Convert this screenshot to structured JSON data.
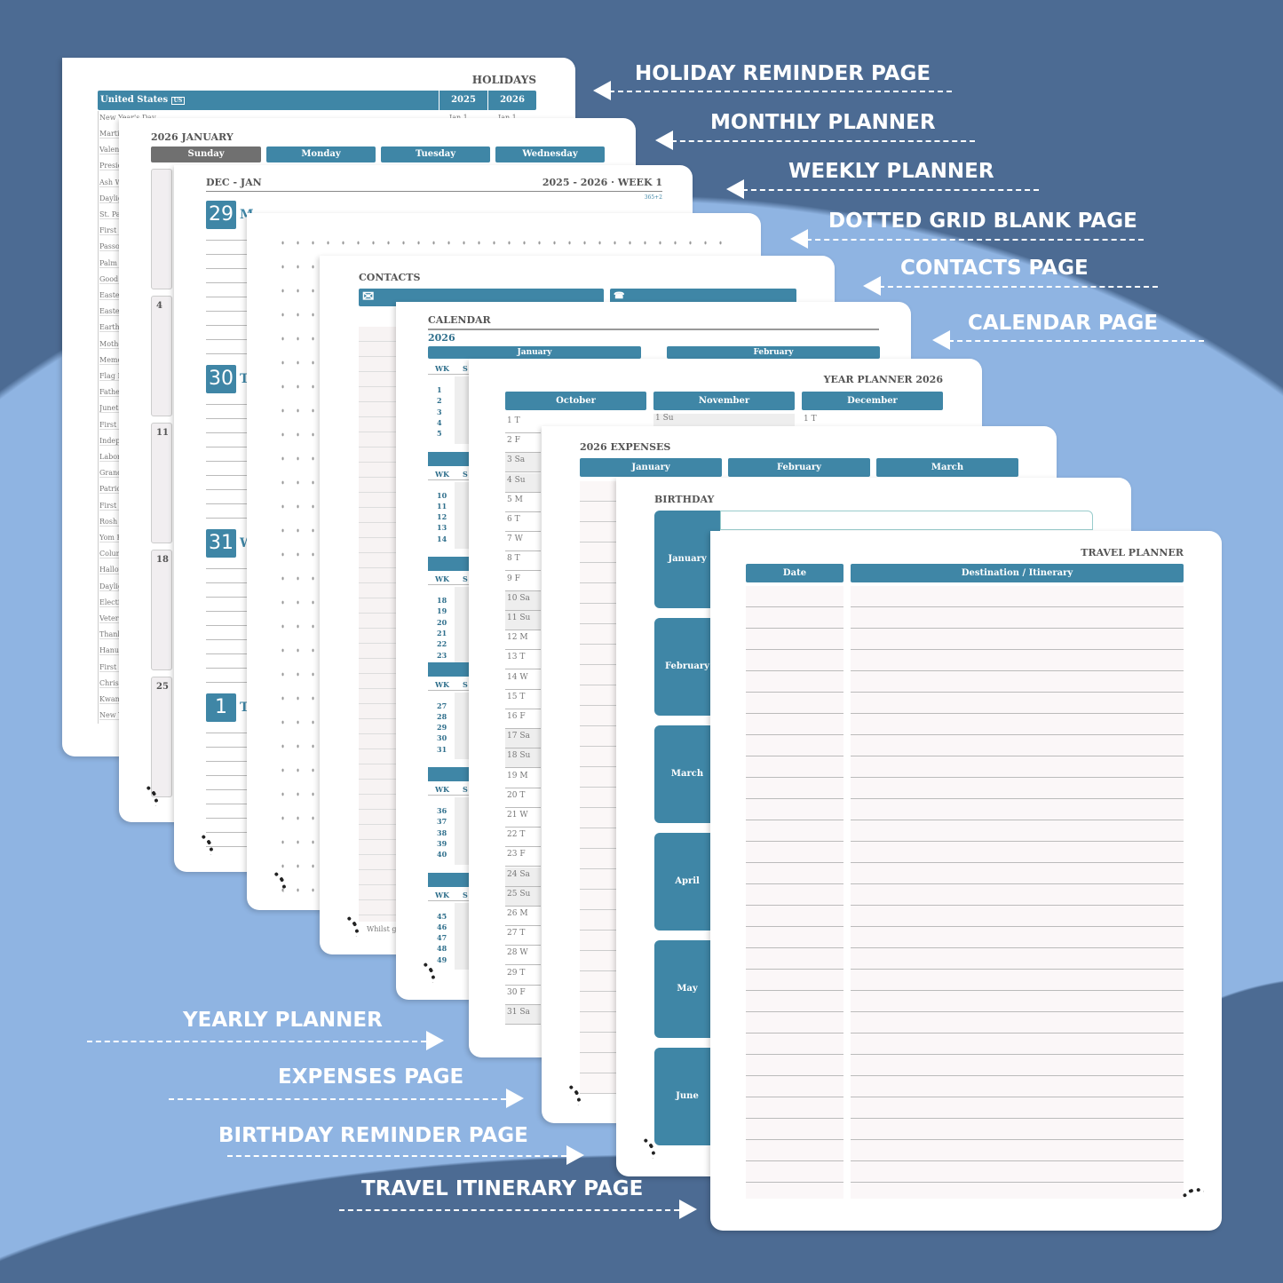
{
  "colors": {
    "background": "#4c6b93",
    "arc": "#8fb4e2",
    "accent": "#3f86a6"
  },
  "labels_right": [
    "HOLIDAY REMINDER PAGE",
    "MONTHLY PLANNER",
    "WEEKLY PLANNER",
    "DOTTED GRID BLANK PAGE",
    "CONTACTS PAGE",
    "CALENDAR PAGE"
  ],
  "labels_left": [
    "YEARLY PLANNER",
    "EXPENSES PAGE",
    "BIRTHDAY REMINDER PAGE",
    "TRAVEL ITINERARY PAGE"
  ],
  "holiday": {
    "title": "HOLIDAYS",
    "country": "United States",
    "country_code": "US",
    "years": [
      "2025",
      "2026"
    ],
    "first_row": {
      "name": "New Year's Day",
      "d2025": "Jan 1",
      "d2026": "Jan 1"
    },
    "names": [
      "Martin",
      "Valent",
      "Preside",
      "Ash W",
      "Dayligl",
      "St. Pat",
      "First D",
      "Passov",
      "Palm S",
      "Good I",
      "Easter",
      "Easter",
      "Earth I",
      "Mothe",
      "Memo",
      "Flag D",
      "Father",
      "Junete",
      "First D",
      "Indepe",
      "Labor",
      "Grand",
      "Patriot",
      "First D",
      "Rosh F",
      "Yom K",
      "Colum",
      "Hallow",
      "Dayligl",
      "Electio",
      "Vetera",
      "Thank",
      "Hanuk",
      "First D",
      "Christ",
      "Kwanz",
      "New Y"
    ]
  },
  "monthly": {
    "title": "2026 JANUARY",
    "days": [
      "Sunday",
      "Monday",
      "Tuesday",
      "Wednesday"
    ],
    "week_dates": [
      "4",
      "11",
      "18",
      "25"
    ]
  },
  "weekly": {
    "left": "DEC - JAN",
    "right": "2025 - 2026 · WEEK 1",
    "sub": "365+2",
    "days": [
      {
        "n": "29",
        "d": "M"
      },
      {
        "n": "30",
        "d": "T"
      },
      {
        "n": "31",
        "d": "W"
      },
      {
        "n": "1",
        "d": "T"
      }
    ]
  },
  "contacts": {
    "title": "CONTACTS",
    "footer": "Whilst g"
  },
  "calendar": {
    "title": "CALENDAR",
    "year": "2026",
    "months": [
      "January",
      "February"
    ],
    "wk_label": "WK",
    "s_label": "S",
    "weeks": [
      [
        "1",
        "2",
        "3",
        "4",
        "5"
      ],
      [
        "10",
        "11",
        "12",
        "13",
        "14"
      ],
      [
        "18",
        "19",
        "20",
        "21",
        "22",
        "23"
      ],
      [
        "27",
        "28",
        "29",
        "30",
        "31"
      ],
      [
        "36",
        "37",
        "38",
        "39",
        "40"
      ],
      [
        "45",
        "46",
        "47",
        "48",
        "49"
      ]
    ]
  },
  "year_planner": {
    "title": "YEAR PLANNER 2026",
    "months": [
      "October",
      "November",
      "December"
    ],
    "nov_first": "1  Su",
    "dec_first": "1  T",
    "october": [
      "1  T",
      "2  F",
      "3  Sa",
      "4  Su",
      "5  M",
      "6  T",
      "7  W",
      "8  T",
      "9  F",
      "10 Sa",
      "11 Su",
      "12 M",
      "13 T",
      "14 W",
      "15 T",
      "16 F",
      "17 Sa",
      "18 Su",
      "19 M",
      "20 T",
      "21 W",
      "22 T",
      "23 F",
      "24 Sa",
      "25 Su",
      "26 M",
      "27 T",
      "28 W",
      "29 T",
      "30 F",
      "31 Sa"
    ]
  },
  "expenses": {
    "title": "2026 EXPENSES",
    "months": [
      "January",
      "February",
      "March"
    ]
  },
  "birthday": {
    "title": "BIRTHDAY",
    "months": [
      "January",
      "February",
      "March",
      "April",
      "May",
      "June"
    ]
  },
  "travel": {
    "title": "TRAVEL PLANNER",
    "col_date": "Date",
    "col_dest": "Destination / Itinerary"
  }
}
